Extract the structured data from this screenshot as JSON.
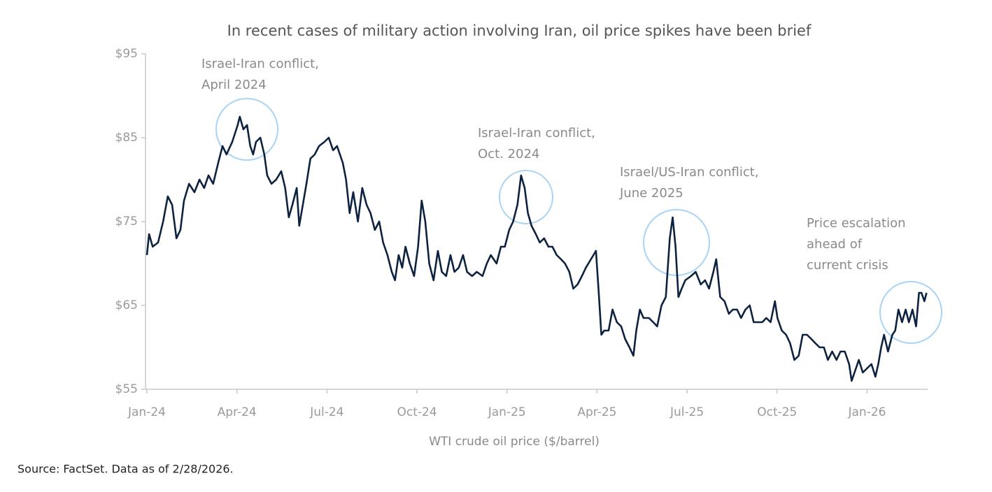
{
  "chart_data": {
    "type": "line",
    "title": "In recent cases of military action involving Iran, oil price spikes have been brief",
    "x_label": "WTI crude oil price ($/barrel)",
    "source": "Source: FactSet. Data as of 2/28/2026.",
    "color": "#0d2240",
    "xlim": [
      2024,
      2026.17
    ],
    "ylim": [
      55,
      95
    ],
    "yticks": [
      {
        "value": 55,
        "label": "$55"
      },
      {
        "value": 65,
        "label": "$65"
      },
      {
        "value": 75,
        "label": "$75"
      },
      {
        "value": 85,
        "label": "$85"
      },
      {
        "value": 95,
        "label": "$95"
      }
    ],
    "xticks": [
      {
        "value": 2024,
        "label": "Jan-24"
      },
      {
        "value": 2024.25,
        "label": "Apr-24"
      },
      {
        "value": 2024.5,
        "label": "Jul-24"
      },
      {
        "value": 2024.75,
        "label": "Oct-24"
      },
      {
        "value": 2025,
        "label": "Jan-25"
      },
      {
        "value": 2025.25,
        "label": "Apr-25"
      },
      {
        "value": 2025.5,
        "label": "Jul-25"
      },
      {
        "value": 2025.75,
        "label": "Oct-25"
      },
      {
        "value": 2026,
        "label": "Jan-26"
      }
    ],
    "grid": false,
    "annotations": [
      {
        "lines": [
          "Israel-Iran conflict,",
          "April 2024"
        ]
      },
      {
        "lines": [
          "Israel-Iran conflict,",
          "Oct. 2024"
        ]
      },
      {
        "lines": [
          "Israel/US-Iran conflict,",
          "June 2025"
        ]
      },
      {
        "lines": [
          "Price escalation",
          "ahead of",
          "current crisis"
        ]
      }
    ],
    "x": [
      2024.0,
      2024.006,
      2024.016,
      2024.031,
      2024.045,
      2024.058,
      2024.07,
      2024.082,
      2024.093,
      2024.103,
      2024.117,
      2024.132,
      2024.146,
      2024.159,
      2024.171,
      2024.184,
      2024.198,
      2024.21,
      2024.221,
      2024.237,
      2024.252,
      2024.258,
      2024.268,
      2024.278,
      2024.287,
      2024.295,
      2024.303,
      2024.315,
      2024.326,
      2024.334,
      2024.346,
      2024.359,
      2024.373,
      2024.384,
      2024.394,
      2024.404,
      2024.416,
      2024.423,
      2024.433,
      2024.443,
      2024.454,
      2024.466,
      2024.478,
      2024.493,
      2024.505,
      2024.517,
      2024.528,
      2024.544,
      2024.553,
      2024.563,
      2024.573,
      2024.586,
      2024.598,
      2024.61,
      2024.621,
      2024.633,
      2024.645,
      2024.656,
      2024.668,
      2024.68,
      2024.689,
      2024.699,
      2024.709,
      2024.718,
      2024.73,
      2024.742,
      2024.753,
      2024.763,
      2024.773,
      2024.784,
      2024.796,
      2024.808,
      2024.819,
      2024.831,
      2024.843,
      2024.854,
      2024.866,
      2024.878,
      2024.889,
      2024.903,
      2024.916,
      2024.932,
      2024.944,
      2024.955,
      2024.971,
      2024.983,
      2024.994,
      2025.006,
      2025.017,
      2025.029,
      2025.039,
      2025.049,
      2025.058,
      2025.068,
      2025.08,
      2025.091,
      2025.103,
      2025.115,
      2025.126,
      2025.138,
      2025.15,
      2025.161,
      2025.173,
      2025.184,
      2025.196,
      2025.208,
      2025.219,
      2025.233,
      2025.247,
      2025.254,
      2025.262,
      2025.27,
      2025.282,
      2025.293,
      2025.305,
      2025.317,
      2025.328,
      2025.34,
      2025.351,
      2025.359,
      2025.369,
      2025.379,
      2025.394,
      2025.406,
      2025.417,
      2025.429,
      2025.441,
      2025.452,
      2025.46,
      2025.468,
      2025.476,
      2025.485,
      2025.495,
      2025.511,
      2025.524,
      2025.538,
      2025.55,
      2025.561,
      2025.573,
      2025.581,
      2025.592,
      2025.604,
      2025.616,
      2025.627,
      2025.639,
      2025.65,
      2025.662,
      2025.674,
      2025.685,
      2025.697,
      2025.709,
      2025.72,
      2025.732,
      2025.744,
      2025.751,
      2025.763,
      2025.775,
      2025.786,
      2025.798,
      2025.81,
      2025.821,
      2025.833,
      2025.845,
      2025.856,
      2025.868,
      2025.88,
      2025.891,
      2025.903,
      2025.915,
      2025.926,
      2025.938,
      2025.95,
      2025.957,
      2025.965,
      2025.977,
      2025.988,
      2026.0,
      2026.012,
      2026.023,
      2026.031,
      2026.039,
      2026.047,
      2026.058,
      2026.07,
      2026.078,
      2026.087,
      2026.097,
      2026.107,
      2026.116,
      2026.126,
      2026.136,
      2026.144,
      2026.151,
      2026.159,
      2026.165
    ],
    "values": [
      71,
      73.5,
      72,
      72.5,
      75,
      78,
      77,
      73,
      74,
      77.5,
      79.5,
      78.5,
      80,
      79,
      80.5,
      79.5,
      82,
      84,
      83,
      84.5,
      86.5,
      87.5,
      86,
      86.5,
      84,
      83,
      84.5,
      85,
      83,
      80.5,
      79.5,
      80,
      81,
      79,
      75.5,
      77,
      79,
      74.5,
      77,
      79.5,
      82.5,
      83,
      84,
      84.5,
      85,
      83.5,
      84,
      82,
      80,
      76,
      78.5,
      75,
      79,
      77,
      76,
      74,
      75,
      72.5,
      71,
      69,
      68,
      71,
      69.5,
      72,
      70,
      68.5,
      72,
      77.5,
      75,
      70,
      68,
      71.5,
      69,
      68.5,
      71,
      69,
      69.5,
      71,
      69,
      68.5,
      69,
      68.5,
      70,
      71,
      70,
      72,
      72,
      74,
      75,
      77,
      80.5,
      79,
      76,
      74.5,
      73.5,
      72.5,
      73,
      72,
      72,
      71,
      70.5,
      70,
      69,
      67,
      67.5,
      68.5,
      69.5,
      70.5,
      71.5,
      67,
      61.5,
      62,
      62,
      64.5,
      63,
      62.5,
      61,
      60,
      59,
      62,
      64.5,
      63.5,
      63.5,
      63,
      62.5,
      65,
      66,
      73,
      75.5,
      72,
      66,
      67,
      68,
      68.5,
      69,
      67.5,
      68,
      67,
      69,
      70.5,
      66,
      65.5,
      64,
      64.5,
      64.5,
      63.5,
      64.5,
      65,
      63,
      63,
      63,
      63.5,
      63,
      65.5,
      63.5,
      62,
      61.5,
      60.5,
      58.5,
      59,
      61.5,
      61.5,
      61,
      60.5,
      60,
      60,
      58.5,
      59.5,
      58.5,
      59.5,
      59.5,
      58,
      56,
      57,
      58.5,
      57,
      57.5,
      58,
      56.5,
      58,
      60,
      61.5,
      59.5,
      61.5,
      62,
      64.5,
      63,
      64.5,
      63,
      64.5,
      62.5,
      66.5,
      66.5,
      65.5,
      66.5
    ]
  }
}
